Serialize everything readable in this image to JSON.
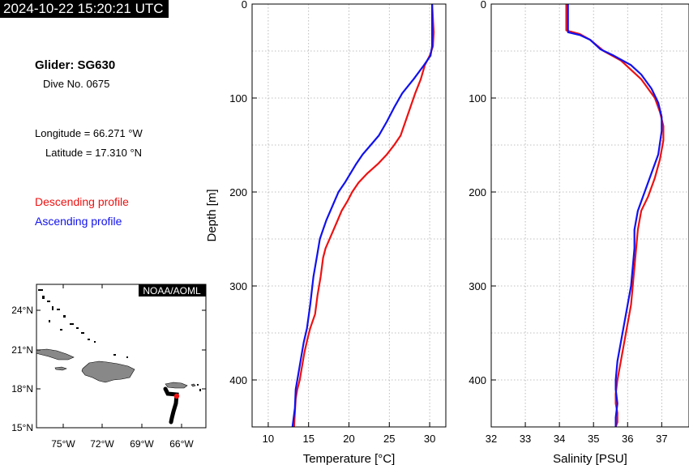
{
  "header": {
    "timestamp": "2024-10-22 15:20:21 UTC"
  },
  "info": {
    "glider": "Glider: SG630",
    "dive": "Dive No. 0675",
    "longitude": "Longitude = 66.271 °W",
    "latitude": "Latitude = 17.310 °N"
  },
  "legend": {
    "descending": "Descending profile",
    "ascending": "Ascending profile",
    "descending_color": "#ee1111",
    "ascending_color": "#1111ee"
  },
  "map": {
    "badge": "NOAA/AOML",
    "lon_ticks": [
      "75°W",
      "72°W",
      "69°W",
      "66°W"
    ],
    "lat_ticks": [
      "24°N",
      "21°N",
      "18°N",
      "15°N"
    ],
    "track_color": "#000000",
    "position_color": "#ee1111"
  },
  "chart_data": [
    {
      "type": "line",
      "xlabel": "Temperature [°C]",
      "ylabel": "Depth [m]",
      "xlim": [
        8,
        32
      ],
      "ylim": [
        450,
        0
      ],
      "xticks": [
        10,
        15,
        20,
        25,
        30
      ],
      "yticks": [
        0,
        100,
        200,
        300,
        400
      ],
      "grid": true,
      "series": [
        {
          "color": "#ee1111",
          "x": [
            30.3,
            30.5,
            30.4,
            30.0,
            29.4,
            28.9,
            28.2,
            27.6,
            27.0,
            26.4,
            25.6,
            24.7,
            23.6,
            22.3,
            21.2,
            20.4,
            19.8,
            19.1,
            18.6,
            18.1,
            17.6,
            17.1,
            16.8,
            16.5,
            16.1,
            15.8,
            15.2,
            14.9,
            14.5,
            14.2,
            13.9,
            13.6,
            13.4,
            13.3,
            13.2
          ],
          "y": [
            0,
            30,
            45,
            55,
            65,
            80,
            95,
            110,
            125,
            140,
            150,
            160,
            170,
            180,
            190,
            200,
            210,
            220,
            230,
            240,
            250,
            260,
            270,
            290,
            310,
            330,
            345,
            355,
            370,
            385,
            400,
            410,
            420,
            435,
            450
          ]
        },
        {
          "color": "#1111ee",
          "x": [
            30.3,
            30.3,
            30.3,
            30.1,
            29.3,
            28.0,
            26.6,
            25.6,
            24.7,
            23.7,
            22.7,
            21.7,
            20.9,
            20.2,
            19.5,
            18.7,
            18.2,
            17.7,
            17.2,
            16.8,
            16.4,
            16.1,
            15.6,
            15.2,
            14.8,
            14.4,
            14.1,
            13.7,
            13.4,
            13.3,
            13.0
          ],
          "y": [
            0,
            30,
            45,
            55,
            65,
            80,
            95,
            110,
            125,
            140,
            150,
            160,
            170,
            180,
            190,
            200,
            210,
            220,
            230,
            240,
            250,
            265,
            290,
            320,
            345,
            360,
            375,
            395,
            410,
            430,
            450
          ]
        }
      ]
    },
    {
      "type": "line",
      "xlabel": "Salinity [PSU]",
      "ylabel": "",
      "xlim": [
        32,
        37.8
      ],
      "ylim": [
        450,
        0
      ],
      "xticks": [
        32,
        33,
        34,
        35,
        36,
        37
      ],
      "yticks": [
        0,
        100,
        200,
        300,
        400
      ],
      "grid": true,
      "series": [
        {
          "color": "#ee1111",
          "x": [
            34.2,
            34.2,
            34.2,
            34.6,
            34.9,
            35.3,
            35.8,
            36.1,
            36.4,
            36.6,
            36.8,
            36.95,
            37.05,
            37.05,
            36.95,
            36.8,
            36.6,
            36.4,
            36.3,
            36.25,
            36.2,
            36.15,
            36.1,
            36.0,
            35.9,
            35.8,
            35.7,
            35.65,
            35.65,
            35.7,
            35.7,
            35.65
          ],
          "y": [
            0,
            20,
            28,
            32,
            38,
            50,
            60,
            70,
            80,
            90,
            100,
            115,
            130,
            145,
            165,
            185,
            205,
            220,
            240,
            260,
            280,
            300,
            320,
            340,
            360,
            380,
            400,
            415,
            425,
            435,
            445,
            450
          ]
        },
        {
          "color": "#1111ee",
          "x": [
            34.25,
            34.25,
            34.25,
            34.6,
            34.9,
            35.2,
            35.6,
            36.1,
            36.4,
            36.7,
            36.9,
            37.0,
            37.0,
            36.9,
            36.7,
            36.5,
            36.3,
            36.2,
            36.2,
            36.15,
            36.1,
            36.0,
            35.9,
            35.8,
            35.7,
            35.65,
            35.65,
            35.7,
            35.65,
            35.65
          ],
          "y": [
            0,
            20,
            30,
            33,
            38,
            48,
            55,
            65,
            75,
            90,
            105,
            120,
            135,
            160,
            180,
            200,
            220,
            240,
            260,
            280,
            300,
            320,
            340,
            360,
            380,
            400,
            410,
            425,
            440,
            450
          ]
        }
      ]
    }
  ]
}
